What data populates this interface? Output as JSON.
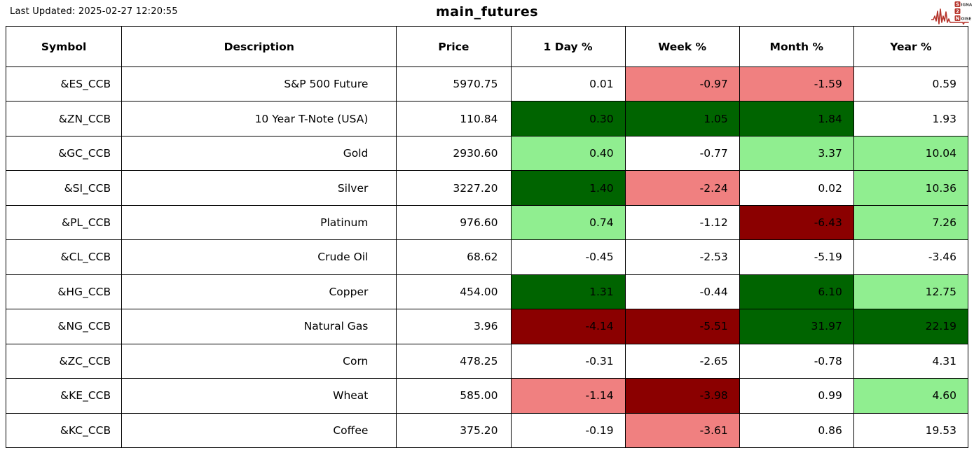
{
  "header": {
    "last_updated": "Last Updated: 2025-02-27 12:20:55",
    "title": "main_futures",
    "logo": {
      "line1_badge": "S",
      "line1_rest": "IGNAL",
      "line2_badge": "2",
      "line3_badge": "N",
      "line3_rest": "OISE",
      "accent_color": "#b5342b",
      "text_color": "#3a3a3a"
    }
  },
  "palette": {
    "strong_up": "#006400",
    "up": "#90ee90",
    "down": "#f08080",
    "strong_down": "#8b0000",
    "flat": "#ffffff"
  },
  "chart_data": {
    "type": "table",
    "title": "main_futures",
    "last_updated": "2025-02-27 12:20:55",
    "columns": [
      "Symbol",
      "Description",
      "Price",
      "1 Day %",
      "Week %",
      "Month %",
      "Year %"
    ],
    "rows": [
      {
        "symbol": "&ES_CCB",
        "description": "S&P 500 Future",
        "price": "5970.75",
        "changes": [
          {
            "value": "0.01",
            "tone": "flat"
          },
          {
            "value": "-0.97",
            "tone": "down"
          },
          {
            "value": "-1.59",
            "tone": "down"
          },
          {
            "value": "0.59",
            "tone": "flat"
          }
        ]
      },
      {
        "symbol": "&ZN_CCB",
        "description": "10 Year T-Note (USA)",
        "price": "110.84",
        "changes": [
          {
            "value": "0.30",
            "tone": "strong_up"
          },
          {
            "value": "1.05",
            "tone": "strong_up"
          },
          {
            "value": "1.84",
            "tone": "strong_up"
          },
          {
            "value": "1.93",
            "tone": "flat"
          }
        ]
      },
      {
        "symbol": "&GC_CCB",
        "description": "Gold",
        "price": "2930.60",
        "changes": [
          {
            "value": "0.40",
            "tone": "up"
          },
          {
            "value": "-0.77",
            "tone": "flat"
          },
          {
            "value": "3.37",
            "tone": "up"
          },
          {
            "value": "10.04",
            "tone": "up"
          }
        ]
      },
      {
        "symbol": "&SI_CCB",
        "description": "Silver",
        "price": "3227.20",
        "changes": [
          {
            "value": "1.40",
            "tone": "strong_up"
          },
          {
            "value": "-2.24",
            "tone": "down"
          },
          {
            "value": "0.02",
            "tone": "flat"
          },
          {
            "value": "10.36",
            "tone": "up"
          }
        ]
      },
      {
        "symbol": "&PL_CCB",
        "description": "Platinum",
        "price": "976.60",
        "changes": [
          {
            "value": "0.74",
            "tone": "up"
          },
          {
            "value": "-1.12",
            "tone": "flat"
          },
          {
            "value": "-6.43",
            "tone": "strong_down"
          },
          {
            "value": "7.26",
            "tone": "up"
          }
        ]
      },
      {
        "symbol": "&CL_CCB",
        "description": "Crude Oil",
        "price": "68.62",
        "changes": [
          {
            "value": "-0.45",
            "tone": "flat"
          },
          {
            "value": "-2.53",
            "tone": "flat"
          },
          {
            "value": "-5.19",
            "tone": "flat"
          },
          {
            "value": "-3.46",
            "tone": "flat"
          }
        ]
      },
      {
        "symbol": "&HG_CCB",
        "description": "Copper",
        "price": "454.00",
        "changes": [
          {
            "value": "1.31",
            "tone": "strong_up"
          },
          {
            "value": "-0.44",
            "tone": "flat"
          },
          {
            "value": "6.10",
            "tone": "strong_up"
          },
          {
            "value": "12.75",
            "tone": "up"
          }
        ]
      },
      {
        "symbol": "&NG_CCB",
        "description": "Natural Gas",
        "price": "3.96",
        "changes": [
          {
            "value": "-4.14",
            "tone": "strong_down"
          },
          {
            "value": "-5.51",
            "tone": "strong_down"
          },
          {
            "value": "31.97",
            "tone": "strong_up"
          },
          {
            "value": "22.19",
            "tone": "strong_up"
          }
        ]
      },
      {
        "symbol": "&ZC_CCB",
        "description": "Corn",
        "price": "478.25",
        "changes": [
          {
            "value": "-0.31",
            "tone": "flat"
          },
          {
            "value": "-2.65",
            "tone": "flat"
          },
          {
            "value": "-0.78",
            "tone": "flat"
          },
          {
            "value": "4.31",
            "tone": "flat"
          }
        ]
      },
      {
        "symbol": "&KE_CCB",
        "description": "Wheat",
        "price": "585.00",
        "changes": [
          {
            "value": "-1.14",
            "tone": "down"
          },
          {
            "value": "-3.98",
            "tone": "strong_down"
          },
          {
            "value": "0.99",
            "tone": "flat"
          },
          {
            "value": "4.60",
            "tone": "up"
          }
        ]
      },
      {
        "symbol": "&KC_CCB",
        "description": "Coffee",
        "price": "375.20",
        "changes": [
          {
            "value": "-0.19",
            "tone": "flat"
          },
          {
            "value": "-3.61",
            "tone": "down"
          },
          {
            "value": "0.86",
            "tone": "flat"
          },
          {
            "value": "19.53",
            "tone": "flat"
          }
        ]
      }
    ]
  }
}
